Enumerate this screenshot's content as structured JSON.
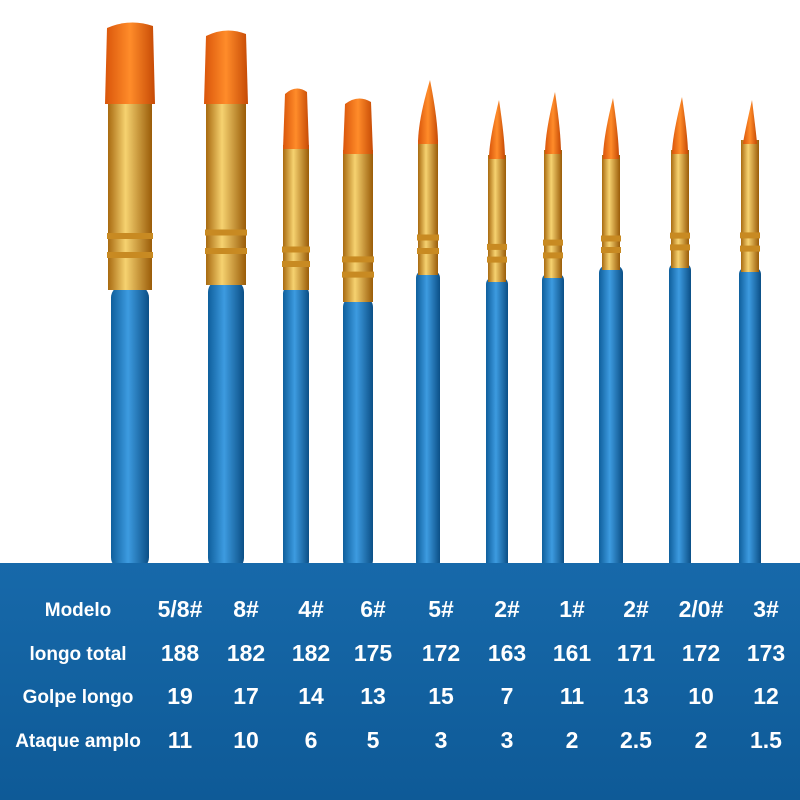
{
  "table": {
    "rows": [
      [
        "Modelo",
        "5/8#",
        "8#",
        "4#",
        "6#",
        "5#",
        "2#",
        "1#",
        "2#",
        "2/0#",
        "3#"
      ],
      [
        "longo total",
        188,
        182,
        182,
        175,
        172,
        163,
        161,
        171,
        172,
        173
      ],
      [
        "Golpe longo",
        19,
        17,
        14,
        13,
        15,
        7,
        11,
        13,
        10,
        12
      ],
      [
        "Ataque amplo",
        11,
        10,
        6,
        5,
        3,
        3,
        2,
        2.5,
        2,
        1.5
      ]
    ]
  }
}
